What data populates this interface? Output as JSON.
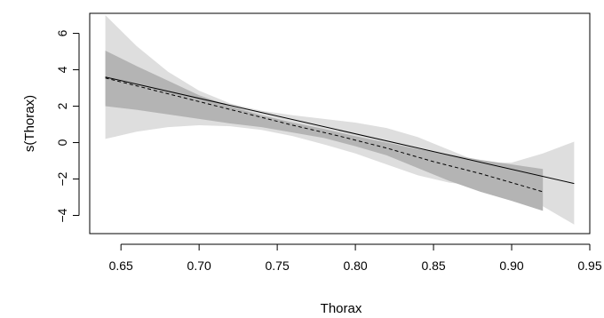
{
  "chart_data": {
    "type": "line",
    "xlabel": "Thorax",
    "ylabel": "s(Thorax)",
    "xlim": [
      0.63,
      0.95
    ],
    "ylim": [
      -5,
      7.1
    ],
    "x_ticks": [
      "0.65",
      "0.70",
      "0.75",
      "0.80",
      "0.85",
      "0.90",
      "0.95"
    ],
    "y_ticks": [
      "−4",
      "−2",
      "0",
      "2",
      "4",
      "6"
    ],
    "grid": false,
    "colors": {
      "wide_band": "#dedede",
      "narrow_band": "#b4b4b4",
      "line": "#000000"
    },
    "bands": [
      {
        "x": [
          0.64,
          0.66,
          0.68,
          0.7,
          0.72,
          0.74,
          0.76,
          0.78,
          0.8,
          0.82,
          0.84,
          0.86,
          0.88,
          0.9,
          0.92,
          0.94
        ],
        "upper": [
          7.0,
          5.3,
          3.9,
          2.85,
          2.15,
          1.75,
          1.5,
          1.3,
          1.1,
          0.8,
          0.3,
          -0.4,
          -1.1,
          -1.1,
          -0.6,
          0.05
        ],
        "lower": [
          0.2,
          0.6,
          0.85,
          0.95,
          0.9,
          0.7,
          0.35,
          -0.1,
          -0.6,
          -1.2,
          -1.8,
          -2.2,
          -2.4,
          -2.7,
          -3.5,
          -4.5
        ]
      },
      {
        "x": [
          0.64,
          0.66,
          0.68,
          0.7,
          0.72,
          0.74,
          0.76,
          0.78,
          0.8,
          0.82,
          0.84,
          0.86,
          0.88,
          0.9,
          0.92
        ],
        "upper": [
          5.05,
          4.2,
          3.4,
          2.6,
          2.0,
          1.5,
          1.1,
          0.75,
          0.35,
          0.0,
          -0.35,
          -0.65,
          -0.95,
          -1.2,
          -1.45
        ],
        "lower": [
          2.0,
          1.8,
          1.55,
          1.3,
          1.05,
          0.85,
          0.55,
          0.25,
          -0.2,
          -0.7,
          -1.4,
          -2.1,
          -2.7,
          -3.2,
          -3.75
        ]
      }
    ],
    "series": [
      {
        "style": "solid",
        "x": [
          0.64,
          0.94
        ],
        "y": [
          3.6,
          -2.25
        ]
      },
      {
        "style": "dashed",
        "x": [
          0.64,
          0.67,
          0.7,
          0.73,
          0.76,
          0.79,
          0.82,
          0.85,
          0.88,
          0.9,
          0.92
        ],
        "y": [
          3.55,
          2.9,
          2.25,
          1.6,
          0.95,
          0.35,
          -0.3,
          -1.05,
          -1.7,
          -2.2,
          -2.7
        ]
      }
    ]
  }
}
